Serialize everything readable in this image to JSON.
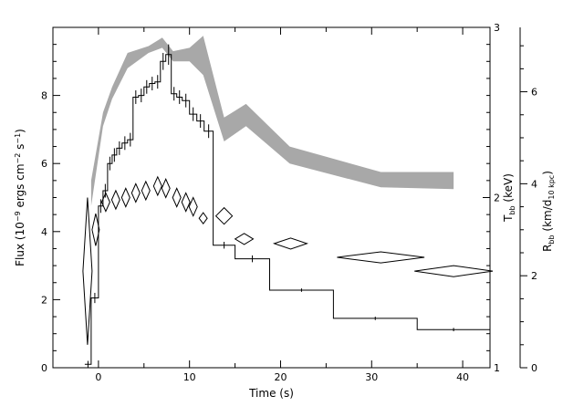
{
  "chart_data": {
    "type": "line",
    "xlabel": "Time (s)",
    "ylabel_left": "Flux (10^-9 ergs cm^-2 s^-1)",
    "ylabel_right_1": "T_bb (keV)",
    "ylabel_right_2": "R_bb (km/d_10 kpc)",
    "xlim": [
      -5,
      43
    ],
    "x_ticks": [
      0,
      10,
      20,
      30,
      40
    ],
    "y_left": {
      "lim": [
        0,
        10
      ],
      "ticks": [
        0,
        2,
        4,
        6,
        8
      ]
    },
    "y_right_1": {
      "lim": [
        1,
        3
      ],
      "ticks": [
        1,
        2,
        3
      ]
    },
    "y_right_2": {
      "lim": [
        0,
        7.4
      ],
      "ticks": [
        0,
        2,
        4,
        6
      ]
    },
    "grid": false,
    "colors": {
      "line": "#000000",
      "band": "#a8a8a8"
    },
    "series": [
      {
        "kind": "flux-steps",
        "points": [
          {
            "x0": -1.5,
            "x1": -0.8,
            "y": 0.1,
            "err": 0.1
          },
          {
            "x0": -0.8,
            "x1": 0.0,
            "y": 2.05,
            "err": 0.15
          },
          {
            "x0": 0.0,
            "x1": 0.5,
            "y": 4.75,
            "err": 0.2
          },
          {
            "x0": 0.5,
            "x1": 1.0,
            "y": 5.2,
            "err": 0.2
          },
          {
            "x0": 1.0,
            "x1": 1.5,
            "y": 6.0,
            "err": 0.2
          },
          {
            "x0": 1.5,
            "x1": 2.0,
            "y": 6.25,
            "err": 0.2
          },
          {
            "x0": 2.0,
            "x1": 2.6,
            "y": 6.45,
            "err": 0.2
          },
          {
            "x0": 2.6,
            "x1": 3.2,
            "y": 6.6,
            "err": 0.2
          },
          {
            "x0": 3.2,
            "x1": 3.8,
            "y": 6.7,
            "err": 0.2
          },
          {
            "x0": 3.8,
            "x1": 4.4,
            "y": 7.95,
            "err": 0.2
          },
          {
            "x0": 4.4,
            "x1": 5.0,
            "y": 8.0,
            "err": 0.2
          },
          {
            "x0": 5.0,
            "x1": 5.6,
            "y": 8.25,
            "err": 0.2
          },
          {
            "x0": 5.6,
            "x1": 6.2,
            "y": 8.35,
            "err": 0.2
          },
          {
            "x0": 6.2,
            "x1": 6.8,
            "y": 8.4,
            "err": 0.2
          },
          {
            "x0": 6.8,
            "x1": 7.4,
            "y": 9.0,
            "err": 0.25
          },
          {
            "x0": 7.4,
            "x1": 8.0,
            "y": 9.2,
            "err": 0.3
          },
          {
            "x0": 8.0,
            "x1": 8.6,
            "y": 8.05,
            "err": 0.2
          },
          {
            "x0": 8.6,
            "x1": 9.2,
            "y": 7.95,
            "err": 0.2
          },
          {
            "x0": 9.2,
            "x1": 10.0,
            "y": 7.85,
            "err": 0.2
          },
          {
            "x0": 10.0,
            "x1": 10.8,
            "y": 7.45,
            "err": 0.2
          },
          {
            "x0": 10.8,
            "x1": 11.6,
            "y": 7.25,
            "err": 0.2
          },
          {
            "x0": 11.6,
            "x1": 12.6,
            "y": 6.95,
            "err": 0.2
          },
          {
            "x0": 12.6,
            "x1": 15.0,
            "y": 3.6,
            "err": 0.1
          },
          {
            "x0": 15.0,
            "x1": 18.8,
            "y": 3.2,
            "err": 0.1
          },
          {
            "x0": 18.8,
            "x1": 25.8,
            "y": 2.28,
            "err": 0.05
          },
          {
            "x0": 25.8,
            "x1": 35.0,
            "y": 1.45,
            "err": 0.05
          },
          {
            "x0": 35.0,
            "x1": 43.0,
            "y": 1.12,
            "err": 0.05
          }
        ]
      },
      {
        "kind": "temperature-band",
        "axis": "y_right_1",
        "x": [
          -0.8,
          0.5,
          1.5,
          3.2,
          5.5,
          7.0,
          8.2,
          10.0,
          11.5,
          13.8,
          16.2,
          21.0,
          31.0,
          39.0
        ],
        "upper": [
          2.1,
          2.5,
          2.65,
          2.85,
          2.89,
          2.94,
          2.86,
          2.88,
          2.95,
          2.47,
          2.55,
          2.3,
          2.15,
          2.15
        ],
        "lower": [
          1.95,
          2.42,
          2.58,
          2.76,
          2.85,
          2.88,
          2.8,
          2.8,
          2.72,
          2.33,
          2.42,
          2.2,
          2.06,
          2.05
        ]
      },
      {
        "kind": "radius-diamonds",
        "axis": "y_right_2",
        "points": [
          {
            "x": -1.2,
            "y": 2.1,
            "dx": 0.5,
            "dy": 1.6
          },
          {
            "x": -0.3,
            "y": 3.0,
            "dx": 0.4,
            "dy": 0.35
          },
          {
            "x": 0.8,
            "y": 3.6,
            "dx": 0.45,
            "dy": 0.2
          },
          {
            "x": 1.9,
            "y": 3.65,
            "dx": 0.45,
            "dy": 0.2
          },
          {
            "x": 3.0,
            "y": 3.7,
            "dx": 0.45,
            "dy": 0.2
          },
          {
            "x": 4.1,
            "y": 3.8,
            "dx": 0.45,
            "dy": 0.2
          },
          {
            "x": 5.2,
            "y": 3.85,
            "dx": 0.45,
            "dy": 0.2
          },
          {
            "x": 6.5,
            "y": 3.95,
            "dx": 0.45,
            "dy": 0.2
          },
          {
            "x": 7.4,
            "y": 3.9,
            "dx": 0.45,
            "dy": 0.2
          },
          {
            "x": 8.6,
            "y": 3.7,
            "dx": 0.45,
            "dy": 0.2
          },
          {
            "x": 9.6,
            "y": 3.6,
            "dx": 0.45,
            "dy": 0.2
          },
          {
            "x": 10.4,
            "y": 3.5,
            "dx": 0.45,
            "dy": 0.2
          },
          {
            "x": 11.5,
            "y": 3.25,
            "dx": 0.45,
            "dy": 0.12
          },
          {
            "x": 13.8,
            "y": 3.3,
            "dx": 0.9,
            "dy": 0.18
          },
          {
            "x": 16.0,
            "y": 2.8,
            "dx": 1.0,
            "dy": 0.12
          },
          {
            "x": 21.1,
            "y": 2.7,
            "dx": 1.8,
            "dy": 0.12
          },
          {
            "x": 31.0,
            "y": 2.4,
            "dx": 4.8,
            "dy": 0.12
          },
          {
            "x": 39.0,
            "y": 2.1,
            "dx": 4.3,
            "dy": 0.12
          }
        ]
      }
    ]
  }
}
